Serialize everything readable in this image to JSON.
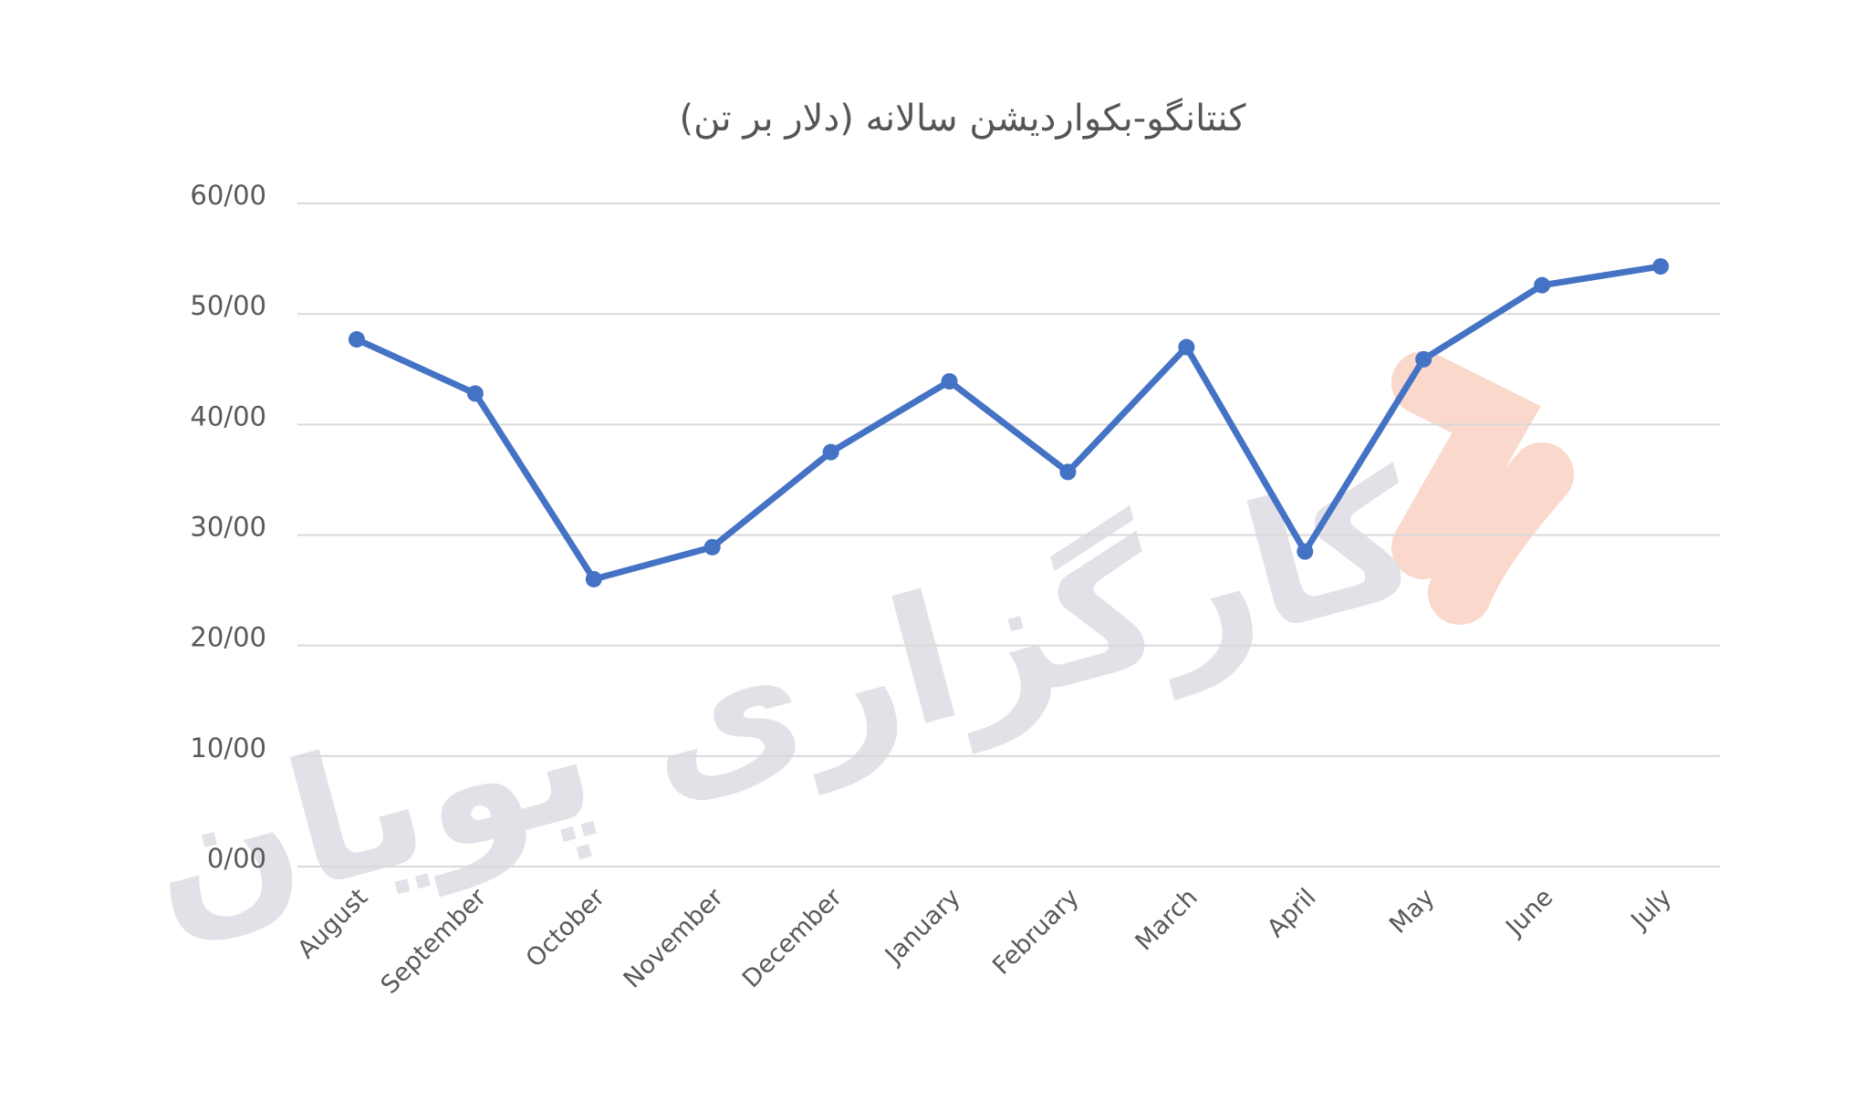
{
  "chart_data": {
    "type": "line",
    "title": "کنتانگو-بکواردیشن سالانه (دلار بر تن)",
    "watermark": "کارگزاری پویان",
    "categories": [
      "August",
      "September",
      "October",
      "November",
      "December",
      "January",
      "February",
      "March",
      "April",
      "May",
      "June",
      "July"
    ],
    "values": [
      47.7,
      42.8,
      26.0,
      28.9,
      37.5,
      43.9,
      35.7,
      47.0,
      28.5,
      45.9,
      52.6,
      54.3
    ],
    "color": "#4472c4",
    "ylim": [
      0,
      60
    ],
    "yticks": [
      {
        "value": 0,
        "label": "0/00"
      },
      {
        "value": 10,
        "label": "10/00"
      },
      {
        "value": 20,
        "label": "20/00"
      },
      {
        "value": 30,
        "label": "30/00"
      },
      {
        "value": 40,
        "label": "40/00"
      },
      {
        "value": 50,
        "label": "50/00"
      },
      {
        "value": 60,
        "label": "60/00"
      }
    ],
    "grid": true
  }
}
